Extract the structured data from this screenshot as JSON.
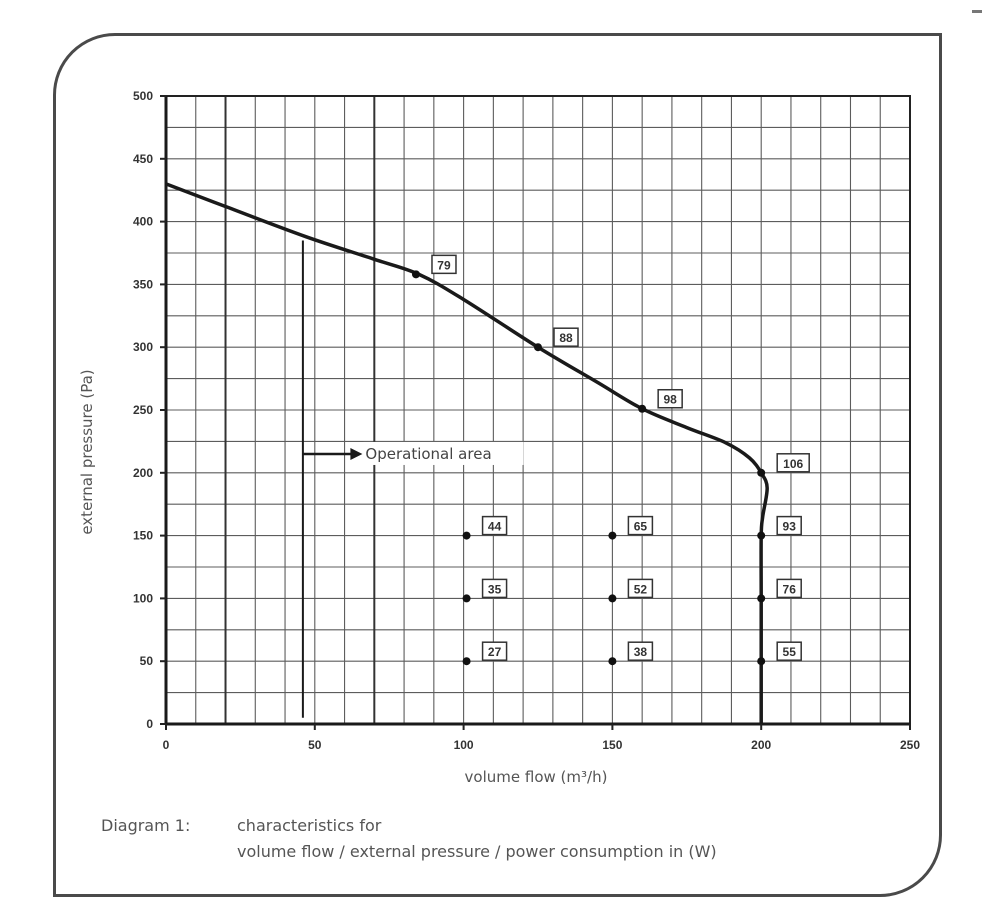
{
  "chart_data": {
    "type": "line",
    "xlabel": "volume flow (m³/h)",
    "ylabel": "external pressure (Pa)",
    "xlim": [
      0,
      250
    ],
    "ylim": [
      0,
      500
    ],
    "x_ticks": [
      0,
      50,
      100,
      150,
      200,
      250
    ],
    "y_ticks": [
      0,
      50,
      100,
      150,
      200,
      250,
      300,
      350,
      400,
      450,
      500
    ],
    "grid": true,
    "series": [
      {
        "curve": [
          [
            0,
            430
          ],
          [
            20,
            412
          ],
          [
            47,
            388
          ],
          [
            70,
            370
          ],
          [
            85,
            358
          ],
          [
            100,
            338
          ],
          [
            125,
            300
          ],
          [
            145,
            272
          ],
          [
            160,
            251
          ],
          [
            175,
            236
          ],
          [
            188,
            224
          ],
          [
            196,
            212
          ],
          [
            200,
            200
          ],
          [
            202,
            188
          ],
          [
            200.5,
            165
          ],
          [
            200,
            150
          ],
          [
            200,
            100
          ],
          [
            200,
            50
          ],
          [
            200,
            0
          ]
        ],
        "points": [
          {
            "x": 84,
            "y": 358,
            "label": "79"
          },
          {
            "x": 125,
            "y": 300,
            "label": "88"
          },
          {
            "x": 160,
            "y": 251,
            "label": "98"
          },
          {
            "x": 200,
            "y": 200,
            "label": "106"
          },
          {
            "x": 200,
            "y": 150,
            "label": "93"
          },
          {
            "x": 200,
            "y": 100,
            "label": "76"
          },
          {
            "x": 200,
            "y": 50,
            "label": "55"
          },
          {
            "x": 101,
            "y": 150,
            "label": "44"
          },
          {
            "x": 101,
            "y": 100,
            "label": "35"
          },
          {
            "x": 101,
            "y": 50,
            "label": "27"
          },
          {
            "x": 150,
            "y": 150,
            "label": "65"
          },
          {
            "x": 150,
            "y": 100,
            "label": "52"
          },
          {
            "x": 150,
            "y": 50,
            "label": "38"
          }
        ]
      }
    ],
    "annotation": {
      "text": "Operational area",
      "boundary": [
        [
          46,
          385
        ],
        [
          46,
          5
        ]
      ],
      "arrow_from": [
        46,
        215
      ],
      "arrow_to": [
        66,
        215
      ]
    }
  },
  "caption": {
    "label": "Diagram 1:",
    "line1": "characteristics for",
    "line2": "volume flow / external pressure / power consumption in (W)"
  }
}
